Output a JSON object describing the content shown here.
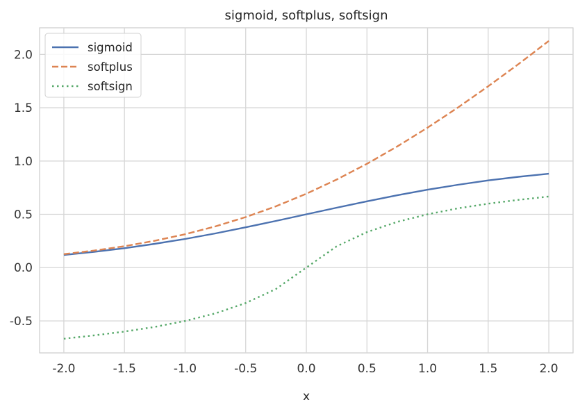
{
  "chart_data": {
    "type": "line",
    "title": "sigmoid, softplus, softsign",
    "xlabel": "x",
    "ylabel": "",
    "xlim": [
      -2.2,
      2.2
    ],
    "ylim": [
      -0.8,
      2.25
    ],
    "xticks": [
      -2.0,
      -1.5,
      -1.0,
      -0.5,
      0.0,
      0.5,
      1.0,
      1.5,
      2.0
    ],
    "xtick_labels": [
      "-2.0",
      "-1.5",
      "-1.0",
      "-0.5",
      "0.0",
      "0.5",
      "1.0",
      "1.5",
      "2.0"
    ],
    "yticks": [
      -0.5,
      0.0,
      0.5,
      1.0,
      1.5,
      2.0
    ],
    "ytick_labels": [
      "-0.5",
      "0.0",
      "0.5",
      "1.0",
      "1.5",
      "2.0"
    ],
    "grid": true,
    "legend_position": "top-left",
    "x": [
      -2.0,
      -1.75,
      -1.5,
      -1.25,
      -1.0,
      -0.75,
      -0.5,
      -0.25,
      0.0,
      0.25,
      0.5,
      0.75,
      1.0,
      1.25,
      1.5,
      1.75,
      2.0
    ],
    "series": [
      {
        "name": "sigmoid",
        "style": "solid",
        "color": "#4c72b0",
        "values": [
          0.119,
          0.148,
          0.182,
          0.223,
          0.269,
          0.321,
          0.378,
          0.438,
          0.5,
          0.562,
          0.622,
          0.679,
          0.731,
          0.777,
          0.818,
          0.852,
          0.881
        ]
      },
      {
        "name": "softplus",
        "style": "dashed",
        "color": "#dd8452",
        "values": [
          0.127,
          0.16,
          0.201,
          0.252,
          0.313,
          0.387,
          0.474,
          0.576,
          0.693,
          0.826,
          0.974,
          1.137,
          1.313,
          1.502,
          1.701,
          1.91,
          2.127
        ]
      },
      {
        "name": "softsign",
        "style": "dotted",
        "color": "#55a868",
        "values": [
          -0.667,
          -0.636,
          -0.6,
          -0.556,
          -0.5,
          -0.429,
          -0.333,
          -0.2,
          0.0,
          0.2,
          0.333,
          0.429,
          0.5,
          0.556,
          0.6,
          0.636,
          0.667
        ]
      }
    ]
  }
}
